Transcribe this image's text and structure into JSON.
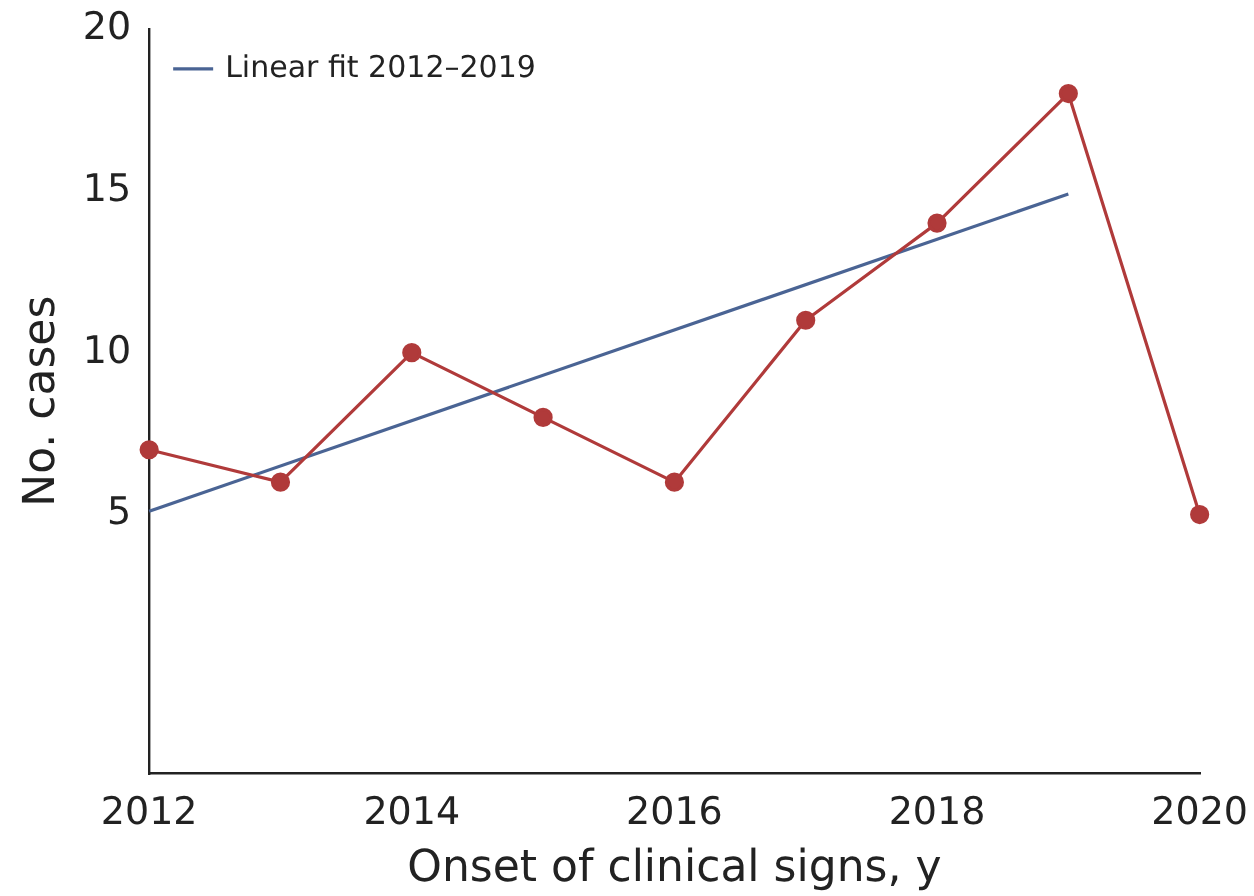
{
  "chart_data": {
    "type": "line",
    "xlabel": "Onset of clinical signs, y",
    "ylabel": "No. cases",
    "x": [
      2012,
      2013,
      2014,
      2015,
      2016,
      2017,
      2018,
      2019,
      2020
    ],
    "series": [
      {
        "color": "#b03a3a",
        "values": [
          7,
          6,
          10,
          8,
          6,
          11,
          14,
          18,
          5
        ],
        "marker": "circle"
      },
      {
        "name": "Linear fit 2012–2019",
        "color": "#4a6494",
        "x": [
          2012,
          2019
        ],
        "values": [
          5.1,
          14.9
        ],
        "marker": "none"
      }
    ],
    "xlim": [
      2012,
      2020
    ],
    "xticks": [
      2012,
      2014,
      2016,
      2018,
      2020
    ],
    "ylim": [
      -3,
      20
    ],
    "yticks": [
      5,
      10,
      15,
      20
    ],
    "grid": false,
    "legend": "top left"
  }
}
